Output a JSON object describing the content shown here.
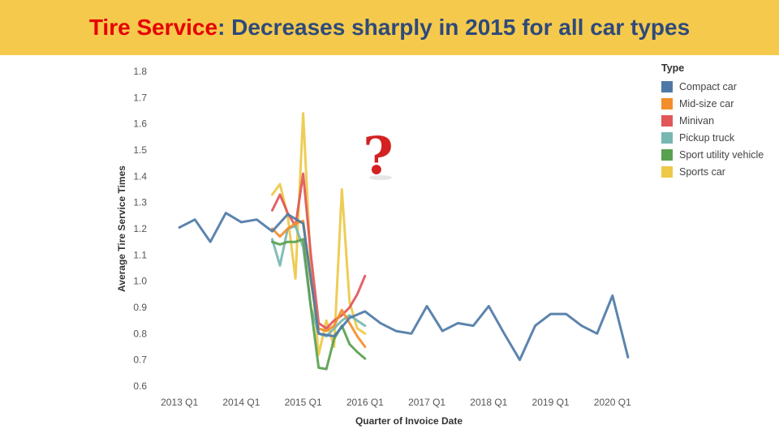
{
  "header": {
    "title_accent": "Tire Service",
    "title_rest": ": Decreases sharply in 2015 for all car types",
    "accent_color": "#e60000",
    "title_color": "#2e4a7a",
    "banner_color": "#f5c94c"
  },
  "annotation": {
    "symbol": "?",
    "color": "#d42020"
  },
  "chart_data": {
    "type": "line",
    "title": "",
    "xlabel": "Quarter of Invoice Date",
    "ylabel": "Average Tire Service Times",
    "ylim": [
      0.6,
      1.8
    ],
    "yticks": [
      "0.6",
      "0.7",
      "0.8",
      "0.9",
      "1.0",
      "1.1",
      "1.2",
      "1.3",
      "1.4",
      "1.5",
      "1.6",
      "1.7",
      "1.8"
    ],
    "xlim": [
      2012.5,
      2020.75
    ],
    "xticks": [
      {
        "label": "2013 Q1",
        "x": 2013
      },
      {
        "label": "2014 Q1",
        "x": 2014
      },
      {
        "label": "2015 Q1",
        "x": 2015
      },
      {
        "label": "2016 Q1",
        "x": 2016
      },
      {
        "label": "2017 Q1",
        "x": 2017
      },
      {
        "label": "2018 Q1",
        "x": 2018
      },
      {
        "label": "2019 Q1",
        "x": 2019
      },
      {
        "label": "2020 Q1",
        "x": 2020
      }
    ],
    "grid": false,
    "legend": {
      "title": "Type",
      "position": "right"
    },
    "series": [
      {
        "name": "Sports car",
        "color": "#edc948",
        "x": [
          2014.5,
          2014.625,
          2014.75,
          2014.875,
          2015.0,
          2015.125,
          2015.25,
          2015.375,
          2015.5,
          2015.625,
          2015.75,
          2015.875,
          2016.0
        ],
        "y": [
          1.33,
          1.37,
          1.25,
          1.01,
          1.64,
          1.05,
          0.72,
          0.85,
          0.75,
          1.35,
          0.92,
          0.82,
          0.8
        ]
      },
      {
        "name": "Minivan",
        "color": "#e15759",
        "x": [
          2014.5,
          2014.625,
          2014.75,
          2014.875,
          2015.0,
          2015.125,
          2015.25,
          2015.375,
          2015.5,
          2015.625,
          2015.75,
          2015.875,
          2016.0
        ],
        "y": [
          1.27,
          1.33,
          1.26,
          1.21,
          1.41,
          1.1,
          0.84,
          0.82,
          0.85,
          0.87,
          0.9,
          0.95,
          1.02
        ]
      },
      {
        "name": "Pickup truck",
        "color": "#76b7b2",
        "x": [
          2014.5,
          2014.625,
          2014.75,
          2014.875,
          2015.0,
          2015.125,
          2015.25,
          2015.375,
          2015.5,
          2015.625,
          2015.75,
          2015.875,
          2016.0
        ],
        "y": [
          1.16,
          1.06,
          1.2,
          1.21,
          1.13,
          0.9,
          0.8,
          0.79,
          0.82,
          0.85,
          0.87,
          0.85,
          0.83
        ]
      },
      {
        "name": "Mid-size car",
        "color": "#f28e2b",
        "x": [
          2014.5,
          2014.625,
          2014.75,
          2014.875,
          2015.0,
          2015.125,
          2015.25,
          2015.375,
          2015.5,
          2015.625,
          2015.75,
          2015.875,
          2016.0
        ],
        "y": [
          1.2,
          1.17,
          1.2,
          1.22,
          1.23,
          1.0,
          0.82,
          0.81,
          0.83,
          0.89,
          0.84,
          0.79,
          0.75
        ]
      },
      {
        "name": "Sport utility vehicle",
        "color": "#59a14f",
        "x": [
          2014.5,
          2014.625,
          2014.75,
          2014.875,
          2015.0,
          2015.125,
          2015.25,
          2015.375,
          2015.5,
          2015.625,
          2015.75,
          2015.875,
          2016.0
        ],
        "y": [
          1.15,
          1.14,
          1.15,
          1.15,
          1.16,
          0.9,
          0.67,
          0.665,
          0.78,
          0.83,
          0.76,
          0.73,
          0.705
        ]
      },
      {
        "name": "Compact car",
        "color": "#4e79a7",
        "x": [
          2013.0,
          2013.25,
          2013.5,
          2013.75,
          2014.0,
          2014.25,
          2014.5,
          2014.75,
          2015.0,
          2015.25,
          2015.5,
          2015.75,
          2016.0,
          2016.25,
          2016.5,
          2016.75,
          2017.0,
          2017.25,
          2017.5,
          2017.75,
          2018.0,
          2018.25,
          2018.5,
          2018.75,
          2019.0,
          2019.25,
          2019.5,
          2019.75,
          2020.0,
          2020.25
        ],
        "y": [
          1.205,
          1.235,
          1.15,
          1.26,
          1.225,
          1.235,
          1.19,
          1.255,
          1.22,
          0.8,
          0.79,
          0.86,
          0.885,
          0.84,
          0.81,
          0.8,
          0.905,
          0.81,
          0.84,
          0.83,
          0.905,
          0.8,
          0.7,
          0.83,
          0.875,
          0.875,
          0.83,
          0.8,
          0.945,
          0.71
        ]
      }
    ]
  }
}
